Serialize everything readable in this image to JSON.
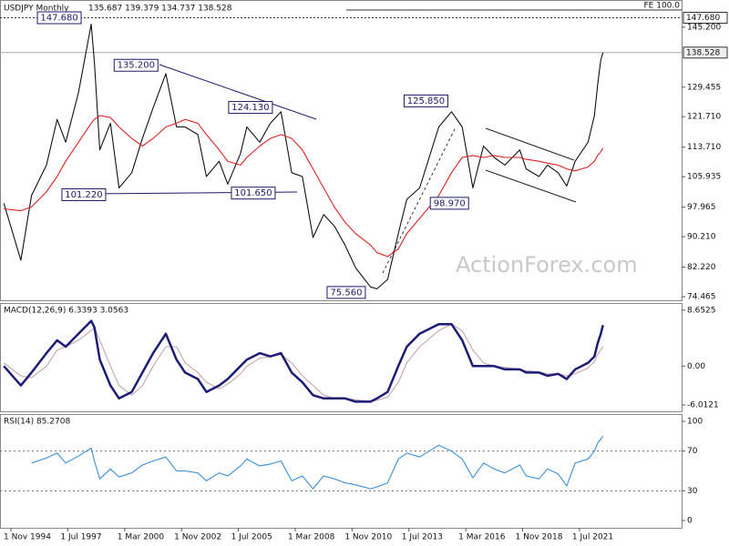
{
  "chart_data": [
    {
      "type": "line",
      "title": "USDJPY Monthly",
      "subtitle": "135.687 139.379 134.737 138.528",
      "watermark": "ActionForex.com",
      "fe_label": "FE 100.0",
      "x": [
        1994.5,
        1995.3,
        1995.8,
        1996.5,
        1997.0,
        1997.4,
        1998.0,
        1998.6,
        1998.75,
        1999.0,
        1999.5,
        1999.9,
        2000.5,
        2001.0,
        2001.5,
        2002.1,
        2002.6,
        2003.0,
        2003.6,
        2004.0,
        2004.6,
        2005.0,
        2005.6,
        2005.9,
        2006.5,
        2007.0,
        2007.5,
        2008.0,
        2008.5,
        2009.0,
        2009.5,
        2010.0,
        2010.5,
        2011.0,
        2011.7,
        2012.0,
        2012.5,
        2013.0,
        2013.4,
        2014.0,
        2014.9,
        2015.5,
        2016.0,
        2016.5,
        2017.0,
        2017.5,
        2018.0,
        2018.7,
        2019.0,
        2019.6,
        2020.0,
        2020.5,
        2020.9,
        2021.3,
        2021.9,
        2022.2,
        2022.35,
        2022.5,
        2022.6
      ],
      "series": [
        {
          "color": "#111111",
          "values": [
            99,
            84,
            101,
            109,
            121,
            115,
            128,
            146,
            136,
            113,
            120,
            103,
            107,
            116,
            124,
            133,
            119,
            119,
            117,
            106,
            110,
            104,
            112,
            119,
            115,
            120,
            123,
            107,
            106,
            90,
            96,
            93,
            88,
            82,
            77,
            76.5,
            79,
            91,
            100,
            103,
            119,
            123,
            119,
            103,
            114,
            111,
            109,
            113,
            108,
            106,
            109,
            107,
            103.5,
            110,
            115,
            122,
            130,
            136.6,
            138.528
          ]
        },
        {
          "color": "#e02020",
          "values": [
            97.5,
            97,
            98,
            102,
            106,
            110,
            115,
            120,
            121,
            122,
            121.5,
            119,
            116,
            114,
            116,
            119,
            120,
            121,
            120,
            117,
            113,
            110,
            109,
            111,
            114,
            116,
            117,
            116,
            113,
            108,
            103,
            98,
            94,
            91,
            88,
            86,
            85,
            87,
            91,
            95,
            101,
            107,
            111,
            111.5,
            111,
            111.5,
            111,
            111,
            110.5,
            110,
            109.5,
            109,
            108,
            107.5,
            108.5,
            110,
            111.5,
            112.5,
            113.5
          ]
        }
      ],
      "xlim": [
        1994.32,
        2026.29
      ],
      "ylim": [
        73.5,
        152.1
      ],
      "yticks": [
        {
          "value": 74.465,
          "label": "74.465"
        },
        {
          "value": 82.22,
          "label": "82.220"
        },
        {
          "value": 90.21,
          "label": "90.210"
        },
        {
          "value": 97.965,
          "label": "97.965"
        },
        {
          "value": 105.935,
          "label": "105.935"
        },
        {
          "value": 113.71,
          "label": "113.710"
        },
        {
          "value": 121.71,
          "label": "121.710"
        },
        {
          "value": 129.455,
          "label": "129.455"
        },
        {
          "value": 145.2,
          "label": "145.200"
        }
      ],
      "levels": [
        {
          "value": 147.68,
          "label": "147.680"
        },
        {
          "value": 138.528,
          "label": "138.528"
        }
      ],
      "annotations": [
        {
          "x": 1997.1,
          "value": 147.68,
          "label": "147.680"
        },
        {
          "x": 2000.7,
          "value": 135.2,
          "label": "135.200"
        },
        {
          "x": 2006.07,
          "value": 124.13,
          "label": "124.130"
        },
        {
          "x": 2014.3,
          "value": 125.85,
          "label": "125.850"
        },
        {
          "x": 1998.25,
          "value": 101.22,
          "label": "101.220"
        },
        {
          "x": 2006.2,
          "value": 101.65,
          "label": "101.650"
        },
        {
          "x": 2015.4,
          "value": 98.97,
          "label": "98.970"
        },
        {
          "x": 2010.56,
          "value": 75.56,
          "label": "75.560"
        }
      ]
    },
    {
      "type": "line",
      "title": "MACD(12,26,9) 6.3393 3.0563",
      "x": [
        1994.5,
        1995.3,
        1995.8,
        1996.5,
        1997.0,
        1997.4,
        1998.0,
        1998.6,
        1998.75,
        1999.0,
        1999.5,
        1999.9,
        2000.5,
        2001.0,
        2001.5,
        2002.1,
        2002.6,
        2003.0,
        2003.6,
        2004.0,
        2004.6,
        2005.0,
        2005.6,
        2005.9,
        2006.5,
        2007.0,
        2007.5,
        2008.0,
        2008.5,
        2009.0,
        2009.5,
        2010.0,
        2010.5,
        2011.0,
        2011.7,
        2012.0,
        2012.5,
        2013.0,
        2013.4,
        2014.0,
        2014.9,
        2015.5,
        2016.0,
        2016.5,
        2017.0,
        2017.5,
        2018.0,
        2018.7,
        2019.0,
        2019.6,
        2020.0,
        2020.5,
        2020.9,
        2021.3,
        2021.9,
        2022.2,
        2022.35,
        2022.5,
        2022.6
      ],
      "series": [
        {
          "color": "#c9a3a8",
          "values": [
            0.5,
            -1.5,
            -1.8,
            0,
            2.5,
            3,
            4,
            5.5,
            6,
            4,
            0,
            -3,
            -4.5,
            -3,
            0,
            3,
            3,
            0.5,
            -1,
            -2.5,
            -3.5,
            -2.8,
            -1.2,
            0,
            1.2,
            1.5,
            1.8,
            0.5,
            -1.5,
            -3,
            -4.5,
            -5,
            -5,
            -5.2,
            -5.5,
            -5.3,
            -4.8,
            -2.5,
            0.5,
            3,
            5.5,
            6.5,
            5.5,
            2.5,
            0.5,
            0,
            -0.2,
            -0.5,
            -0.7,
            -0.9,
            -1.2,
            -1.2,
            -1.5,
            -1.2,
            -0.3,
            0.7,
            1.8,
            2.5,
            3.0563
          ]
        },
        {
          "color": "#1c1c78",
          "values": [
            0,
            -3,
            -1,
            2,
            4,
            3,
            5,
            7,
            6,
            1,
            -3,
            -5,
            -4,
            -1,
            2,
            5,
            1,
            -1,
            -2,
            -4,
            -3,
            -2,
            0,
            1,
            2,
            1.5,
            2,
            -1,
            -2.5,
            -4.5,
            -5,
            -5,
            -5,
            -5.5,
            -5.5,
            -5,
            -4,
            0,
            3,
            5,
            6.5,
            6.5,
            4,
            0,
            0,
            0,
            -0.5,
            -0.5,
            -1,
            -1,
            -1.5,
            -1.2,
            -2,
            -0.5,
            0.5,
            1.5,
            3.5,
            5,
            6.3393
          ]
        }
      ],
      "xlim": [
        1994.32,
        2026.29
      ],
      "ylim": [
        -7.0,
        9.62
      ],
      "yticks": [
        {
          "value": -6.0121,
          "label": "-6.0121"
        },
        {
          "value": 0,
          "label": "0.00"
        },
        {
          "value": 8.6525,
          "label": "8.6525"
        }
      ]
    },
    {
      "type": "line",
      "title": "RSI(14) 85.2708",
      "x": [
        1994.5,
        1995.3,
        1995.8,
        1996.5,
        1997.0,
        1997.4,
        1998.0,
        1998.6,
        1998.75,
        1999.0,
        1999.5,
        1999.9,
        2000.5,
        2001.0,
        2001.5,
        2002.1,
        2002.6,
        2003.0,
        2003.6,
        2004.0,
        2004.6,
        2005.0,
        2005.6,
        2005.9,
        2006.5,
        2007.0,
        2007.5,
        2008.0,
        2008.5,
        2009.0,
        2009.5,
        2010.0,
        2010.5,
        2011.0,
        2011.7,
        2012.0,
        2012.5,
        2013.0,
        2013.4,
        2014.0,
        2014.9,
        2015.5,
        2016.0,
        2016.5,
        2017.0,
        2017.5,
        2018.0,
        2018.7,
        2019.0,
        2019.6,
        2020.0,
        2020.5,
        2020.9,
        2021.3,
        2021.9,
        2022.2,
        2022.35,
        2022.5,
        2022.6
      ],
      "series": [
        {
          "color": "#3b8fd8",
          "values": [
            null,
            null,
            58,
            63,
            68,
            58,
            65,
            73,
            60,
            42,
            52,
            44,
            48,
            56,
            60,
            64,
            50,
            50,
            48,
            40,
            48,
            45,
            55,
            62,
            55,
            57,
            60,
            40,
            45,
            32,
            45,
            42,
            38,
            36,
            32,
            34,
            38,
            62,
            68,
            64,
            76,
            70,
            62,
            43,
            58,
            52,
            48,
            56,
            45,
            42,
            52,
            47,
            35,
            58,
            62,
            70,
            78,
            82,
            85.2708
          ]
        }
      ],
      "xlim": [
        1994.32,
        2026.29
      ],
      "ylim": [
        -7.3,
        106.4
      ],
      "yticks": [
        0,
        30,
        70,
        100
      ],
      "reference_lines": [
        30,
        70
      ],
      "xticks": [
        {
          "value": 1994.833,
          "label": "1 Nov 1994"
        },
        {
          "value": 1997.5,
          "label": "1 Jul 1997"
        },
        {
          "value": 2000.167,
          "label": "1 Mar 2000"
        },
        {
          "value": 2002.833,
          "label": "1 Nov 2002"
        },
        {
          "value": 2005.5,
          "label": "1 Jul 2005"
        },
        {
          "value": 2008.167,
          "label": "1 Mar 2008"
        },
        {
          "value": 2010.833,
          "label": "1 Nov 2010"
        },
        {
          "value": 2013.5,
          "label": "1 Jul 2013"
        },
        {
          "value": 2016.167,
          "label": "1 Mar 2016"
        },
        {
          "value": 2018.833,
          "label": "1 Nov 2018"
        },
        {
          "value": 2021.5,
          "label": "1 Jul 2021"
        }
      ]
    }
  ]
}
